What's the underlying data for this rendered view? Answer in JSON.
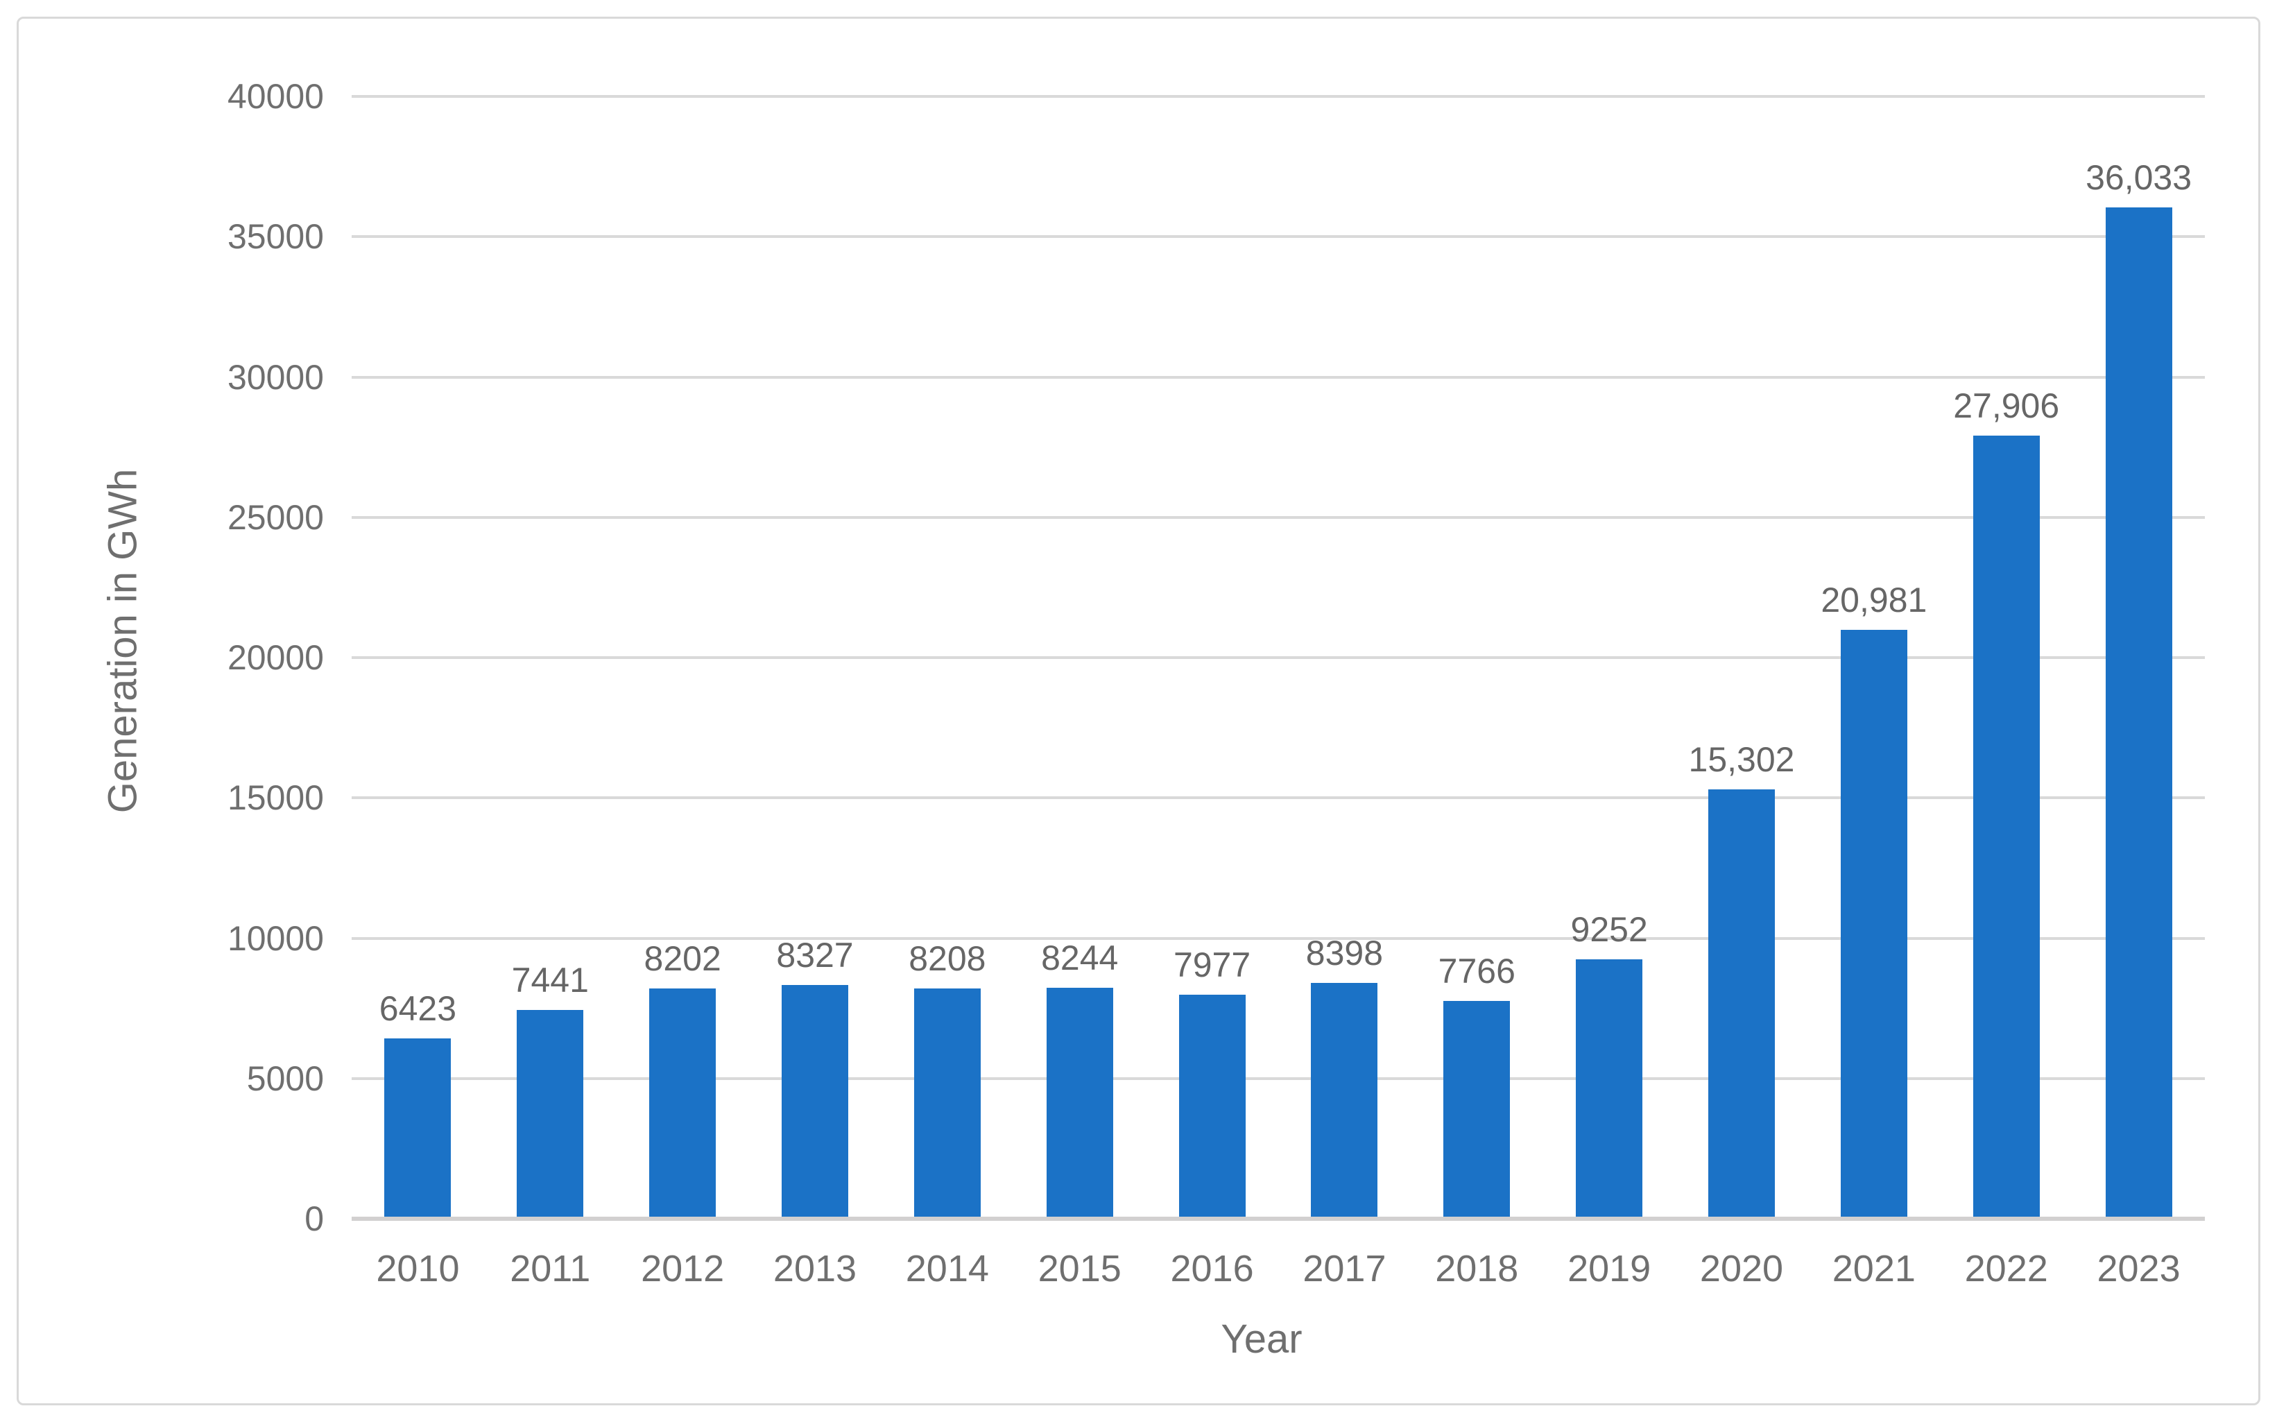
{
  "chart_data": {
    "type": "bar",
    "title": "",
    "categories": [
      "2010",
      "2011",
      "2012",
      "2013",
      "2014",
      "2015",
      "2016",
      "2017",
      "2018",
      "2019",
      "2020",
      "2021",
      "2022",
      "2023"
    ],
    "values": [
      6423,
      7441,
      8202,
      8327,
      8208,
      8244,
      7977,
      8398,
      7766,
      9252,
      15302,
      20981,
      27906,
      36033
    ],
    "data_labels": [
      "6423",
      "7441",
      "8202",
      "8327",
      "8208",
      "8244",
      "7977",
      "8398",
      "7766",
      "9252",
      "15,302",
      "20,981",
      "27,906",
      "36,033"
    ],
    "xlabel": "Year",
    "ylabel": "Generation in GWh",
    "ylim": [
      0,
      40000
    ],
    "ytick_step": 5000,
    "yticks": [
      "0",
      "5000",
      "10000",
      "15000",
      "20000",
      "25000",
      "30000",
      "35000",
      "40000"
    ],
    "grid": "horizontal-only",
    "legend": "none",
    "colors": {
      "bar": "#1B72C6",
      "gridline": "#D9D9D9",
      "axis_line": "#D2D0D0",
      "tick_text": "#6F6F6F",
      "data_label_text": "#666666",
      "axis_title_text": "#6F6F6F",
      "frame_border": "#D9D9D9",
      "background": "#FFFFFF"
    }
  }
}
